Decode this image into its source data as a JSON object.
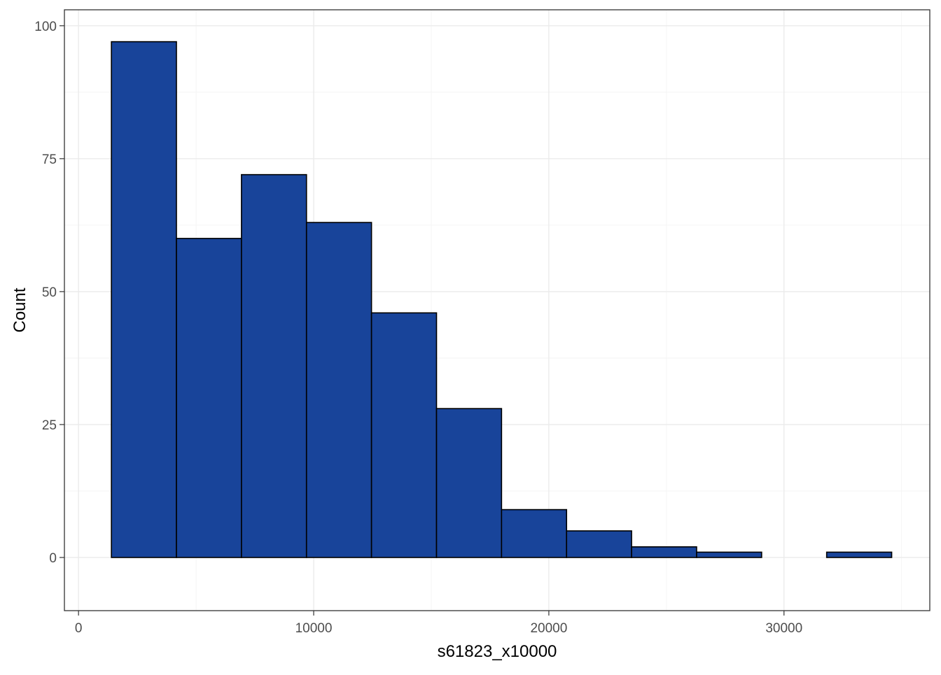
{
  "chart_data": {
    "type": "histogram",
    "title": "",
    "xlabel": "s61823_x10000",
    "ylabel": "Count",
    "xlim": [
      -600,
      36200
    ],
    "ylim": [
      -10,
      103
    ],
    "x_ticks": [
      0,
      10000,
      20000,
      30000
    ],
    "x_tick_labels": [
      "0",
      "10000",
      "20000",
      "30000"
    ],
    "y_ticks": [
      0,
      25,
      50,
      75,
      100
    ],
    "y_tick_labels": [
      "0",
      "25",
      "50",
      "75",
      "100"
    ],
    "bin_width": 2765,
    "bins": [
      {
        "x0": 1399,
        "x1": 4164,
        "count": 97
      },
      {
        "x0": 4164,
        "x1": 6929,
        "count": 60
      },
      {
        "x0": 6929,
        "x1": 9694,
        "count": 72
      },
      {
        "x0": 9694,
        "x1": 12459,
        "count": 63
      },
      {
        "x0": 12459,
        "x1": 15224,
        "count": 46
      },
      {
        "x0": 15224,
        "x1": 17989,
        "count": 28
      },
      {
        "x0": 17989,
        "x1": 20754,
        "count": 9
      },
      {
        "x0": 20754,
        "x1": 23519,
        "count": 5
      },
      {
        "x0": 23519,
        "x1": 26284,
        "count": 2
      },
      {
        "x0": 26284,
        "x1": 29049,
        "count": 1
      },
      {
        "x0": 29049,
        "x1": 31814,
        "count": 0
      },
      {
        "x0": 31814,
        "x1": 34579,
        "count": 1
      }
    ],
    "grid": true,
    "legend": "none",
    "bar_color": "#18449A",
    "bar_outline": "#000000"
  }
}
